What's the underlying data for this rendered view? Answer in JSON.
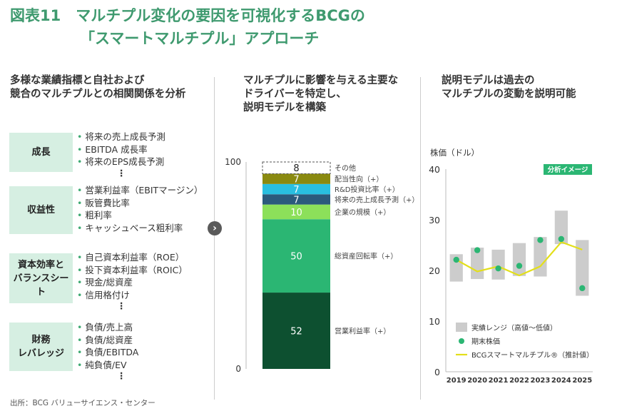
{
  "title": {
    "line1": "図表11　マルチプル変化の要因を可視化するBCGの",
    "line2": "「スマートマルチプル」アプローチ"
  },
  "columns": {
    "left_heading": "多様な業績指標と自社および\n競合のマルチプルとの相関関係を分析",
    "middle_heading": "マルチプルに影響を与える主要な\nドライバーを特定し、\n説明モデルを構築",
    "right_heading": "説明モデルは過去の\nマルチプルの変動を説明可能"
  },
  "categories": [
    {
      "label": "成長",
      "items": [
        "将来の売上成長予測",
        "EBITDA 成長率",
        "将来のEPS成長予測"
      ],
      "more": "⋮"
    },
    {
      "label": "収益性",
      "items": [
        "営業利益率（EBITマージン）",
        "販管費比率",
        "粗利率",
        "キャッシュベース粗利率"
      ],
      "more": ""
    },
    {
      "label": "資本効率と\nバランスシート",
      "items": [
        "自己資本利益率（ROE）",
        "投下資本利益率（ROIC）",
        "現金/総資産",
        "信用格付け"
      ],
      "more": "⋮"
    },
    {
      "label": "財務\nレバレッジ",
      "items": [
        "負債/売上高",
        "負債/総資産",
        "負債/EBITDA",
        "純負債/EV"
      ],
      "more": "⋮"
    }
  ],
  "arrow_glyph": "›",
  "chart_data": [
    {
      "type": "stacked-bar",
      "ylim": [
        0,
        100
      ],
      "yticks": [
        0,
        100
      ],
      "segments": [
        {
          "label": "営業利益率（+）",
          "value": 52,
          "color": "#0d5030"
        },
        {
          "label": "総資産回転率（+）",
          "value": 50,
          "color": "#2bb673"
        },
        {
          "label": "企業の規模（+）",
          "value": 10,
          "color": "#8ce05a"
        },
        {
          "label": "将来の売上成長予測（+）",
          "value": 7,
          "color": "#2b5a7c"
        },
        {
          "label": "R&D投資比率（+）",
          "value": 7,
          "color": "#29bfe0"
        },
        {
          "label": "配当性向（+）",
          "value": 7,
          "color": "#8a8a10"
        },
        {
          "label": "その他",
          "value": 8,
          "color": "none",
          "dashed": true
        }
      ]
    },
    {
      "type": "range-line",
      "ylabel": "株価（ドル）",
      "badge": "分析イメージ",
      "ylim": [
        0,
        40
      ],
      "yticks": [
        0,
        10,
        20,
        30,
        40
      ],
      "x": [
        "2019",
        "2020",
        "2021",
        "2022",
        "2023",
        "2024",
        "2025"
      ],
      "range_high": [
        23.2,
        24.5,
        24.1,
        25.4,
        26.6,
        31.8,
        26.0
      ],
      "range_low": [
        17.8,
        18.3,
        18.2,
        18.9,
        18.8,
        25.2,
        15.0
      ],
      "close": [
        22.1,
        24.0,
        20.4,
        20.9,
        26.0,
        26.2,
        16.5
      ],
      "model": [
        22.1,
        19.8,
        20.8,
        19.0,
        20.8,
        25.6,
        24.1
      ],
      "legend": {
        "range_label": "実績レンジ（高値〜低値）",
        "close_label": "期末株価",
        "model_label": "BCGスマートマルチプル®（推計値）"
      },
      "colors": {
        "range": "#cccccc",
        "close": "#2bb673",
        "model": "#e3df1a",
        "badge": "#2bb673"
      }
    }
  ],
  "source": "出所：BCG バリューサイエンス・センター"
}
